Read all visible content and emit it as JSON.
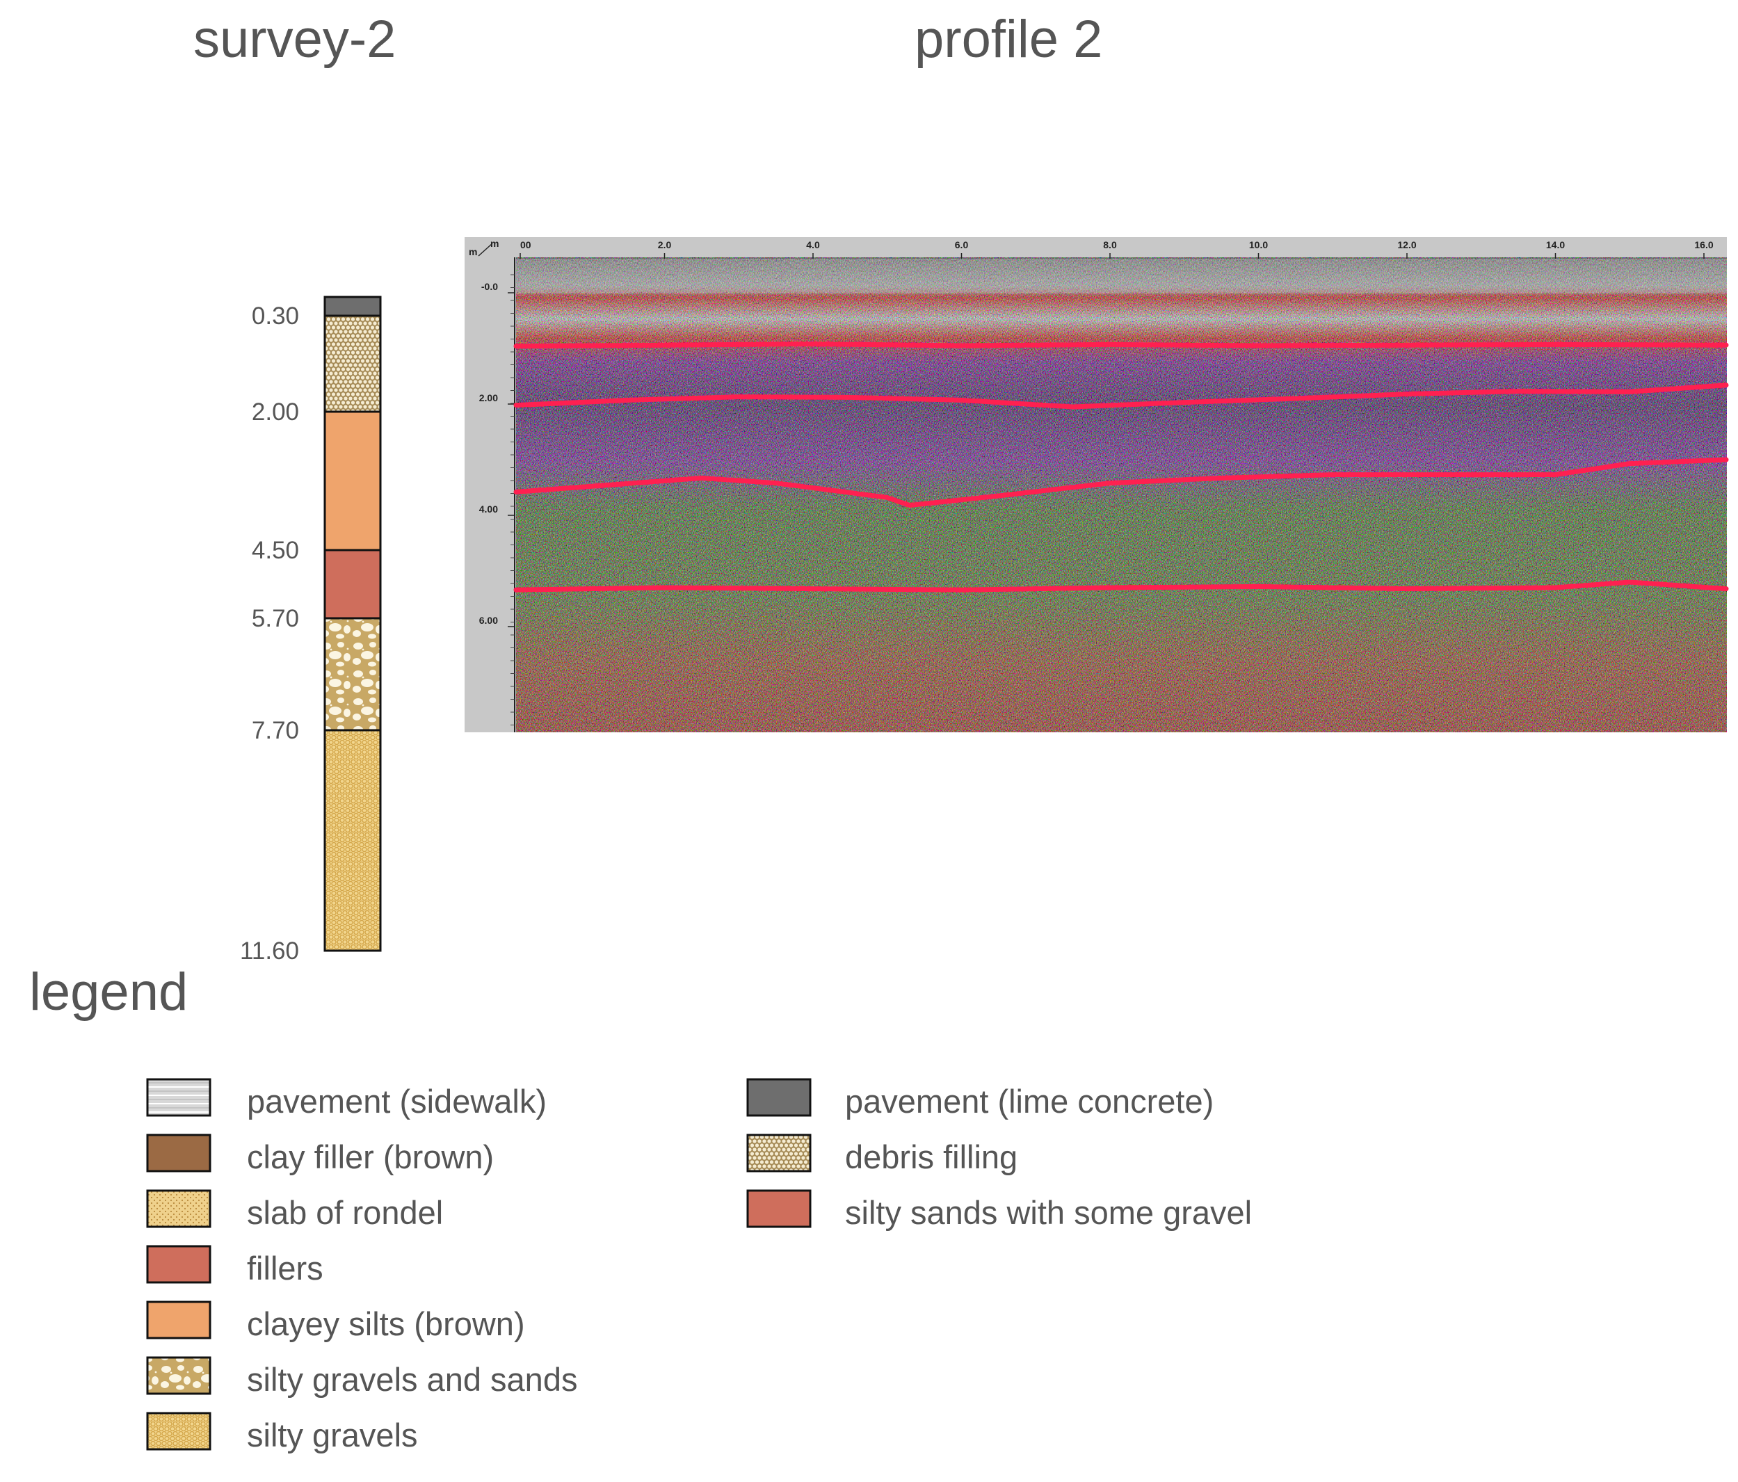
{
  "titles": {
    "survey": "survey-2",
    "profile": "profile 2",
    "legend": "legend"
  },
  "colors": {
    "text": "#555555",
    "pavement_sidewalk": "#d8d8d8",
    "pavement_lime": "#6e6e6e",
    "clay_filler": "#9b6a44",
    "debris": "#a58a55",
    "slab_rondel": "#efd18c",
    "fillers": "#cf6e5c",
    "silty_sands_gravel": "#cf6e5c",
    "clayey_silts": "#efa46c",
    "silty_gravels_sands": "#c8a865",
    "silty_gravels": "#f2d68e",
    "interface_line": "#ff2050"
  },
  "borehole": {
    "depth_unit": "m",
    "layers": [
      {
        "top": 0.0,
        "bottom": 0.3,
        "pattern": "lime",
        "label": "0.30"
      },
      {
        "top": 0.3,
        "bottom": 2.0,
        "pattern": "debris",
        "label": "2.00"
      },
      {
        "top": 2.0,
        "bottom": 4.5,
        "pattern": "clayey",
        "label": "4.50"
      },
      {
        "top": 4.5,
        "bottom": 5.7,
        "pattern": "fillers",
        "label": "5.70"
      },
      {
        "top": 5.7,
        "bottom": 7.7,
        "pattern": "gravelsand",
        "label": "7.70"
      },
      {
        "top": 7.7,
        "bottom": 11.6,
        "pattern": "gravel",
        "label": "11.60"
      }
    ]
  },
  "radargram": {
    "unit_label": "m",
    "x_ticks": [
      "00",
      "2.0",
      "4.0",
      "6.0",
      "8.0",
      "10.0",
      "12.0",
      "14.0",
      "16.0"
    ],
    "y_ticks": [
      "-0.0",
      "2.00",
      "4.00",
      "6.00"
    ],
    "interfaces": [
      [
        [
          0,
          0.96
        ],
        [
          2,
          0.94
        ],
        [
          4,
          0.92
        ],
        [
          6,
          0.95
        ],
        [
          8,
          0.93
        ],
        [
          10,
          0.95
        ],
        [
          12,
          0.94
        ],
        [
          14,
          0.93
        ],
        [
          16.3,
          0.94
        ]
      ],
      [
        [
          0,
          2.02
        ],
        [
          1.5,
          1.93
        ],
        [
          3,
          1.87
        ],
        [
          4.5,
          1.88
        ],
        [
          6,
          1.93
        ],
        [
          7.5,
          2.05
        ],
        [
          9,
          1.97
        ],
        [
          10.5,
          1.9
        ],
        [
          12,
          1.82
        ],
        [
          13.5,
          1.77
        ],
        [
          15,
          1.78
        ],
        [
          16.3,
          1.66
        ]
      ],
      [
        [
          0,
          3.58
        ],
        [
          1.5,
          3.43
        ],
        [
          2.5,
          3.33
        ],
        [
          3.5,
          3.42
        ],
        [
          5,
          3.68
        ],
        [
          5.3,
          3.82
        ],
        [
          6.5,
          3.65
        ],
        [
          8,
          3.42
        ],
        [
          9.5,
          3.33
        ],
        [
          11,
          3.27
        ],
        [
          12.5,
          3.27
        ],
        [
          14,
          3.27
        ],
        [
          15,
          3.07
        ],
        [
          16.3,
          3.0
        ]
      ],
      [
        [
          0,
          5.34
        ],
        [
          2,
          5.3
        ],
        [
          4,
          5.32
        ],
        [
          6,
          5.34
        ],
        [
          8,
          5.3
        ],
        [
          10,
          5.28
        ],
        [
          12,
          5.32
        ],
        [
          14,
          5.3
        ],
        [
          15,
          5.2
        ],
        [
          16.3,
          5.32
        ]
      ]
    ]
  },
  "legend_items": [
    {
      "pattern": "sidewalk",
      "label": "pavement (sidewalk)"
    },
    {
      "pattern": "clay",
      "label": "clay filler (brown)"
    },
    {
      "pattern": "slab",
      "label": "slab of rondel"
    },
    {
      "pattern": "fillers",
      "label": "fillers"
    },
    {
      "pattern": "clayey",
      "label": "clayey silts (brown)"
    },
    {
      "pattern": "gravelsand",
      "label": "silty gravels and sands"
    },
    {
      "pattern": "gravel",
      "label": "silty gravels"
    },
    {
      "pattern": "lime",
      "label": "pavement (lime concrete)"
    },
    {
      "pattern": "debris",
      "label": "debris filling"
    },
    {
      "pattern": "sands",
      "label": "silty sands with some gravel"
    }
  ]
}
